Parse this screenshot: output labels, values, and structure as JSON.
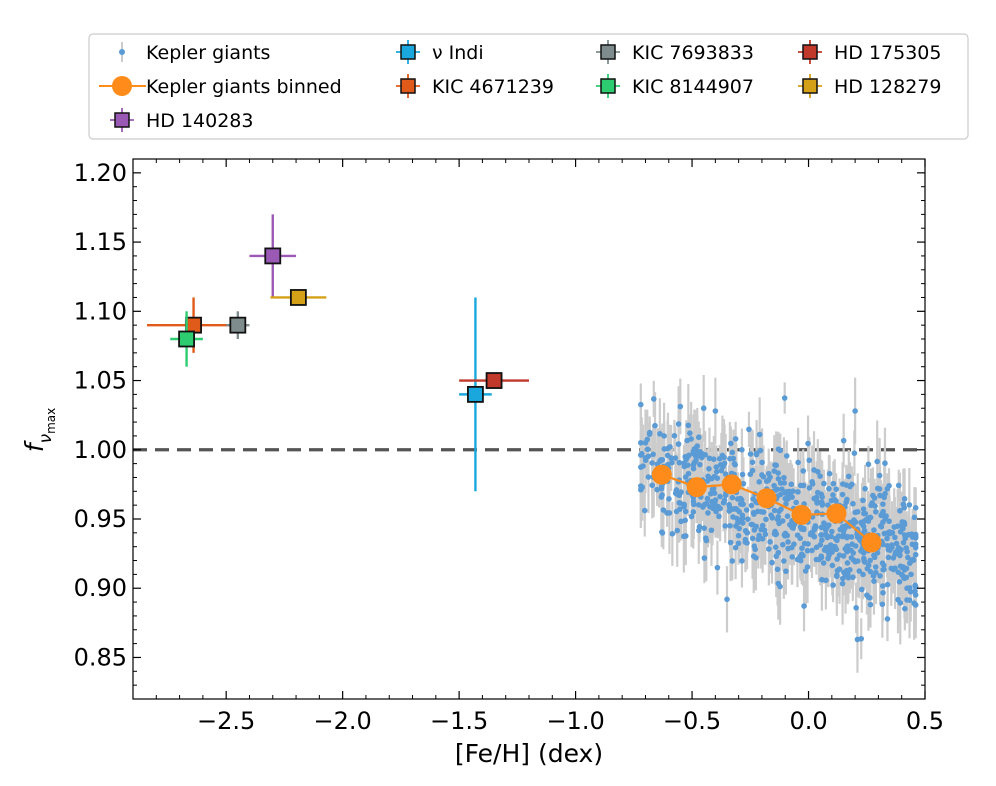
{
  "chart_data": {
    "type": "scatter",
    "xlabel": "[Fe/H] (dex)",
    "ylabel_main": "f",
    "ylabel_sub1": "ν",
    "ylabel_sub2": "max",
    "xlim": [
      -2.9,
      0.5
    ],
    "ylim": [
      0.82,
      1.21
    ],
    "x_ticks": [
      -2.5,
      -2.0,
      -1.5,
      -1.0,
      -0.5,
      0.0,
      0.5
    ],
    "x_tick_labels": [
      "−2.5",
      "−2.0",
      "−1.5",
      "−1.0",
      "−0.5",
      "0.0",
      "0.5"
    ],
    "y_ticks": [
      0.85,
      0.9,
      0.95,
      1.0,
      1.05,
      1.1,
      1.15,
      1.2
    ],
    "y_tick_labels": [
      "0.85",
      "0.90",
      "0.95",
      "1.00",
      "1.05",
      "1.10",
      "1.15",
      "1.20"
    ],
    "reference_line": {
      "y": 1.0,
      "style": "dashed",
      "color": "#555555"
    },
    "legend": {
      "placement": "above-plot",
      "entries": [
        {
          "label": "Kepler giants",
          "kind": "dot",
          "color": "#5b9bd5"
        },
        {
          "label": "Kepler giants binned",
          "kind": "line-circle",
          "color": "#ff8c1a"
        },
        {
          "label": "HD 140283",
          "kind": "square",
          "color": "#9b59b6"
        },
        {
          "label": "ν Indi",
          "kind": "square",
          "color": "#1aa7dd"
        },
        {
          "label": "KIC 4671239",
          "kind": "square",
          "color": "#e05a1a"
        },
        {
          "label": "KIC 7693833",
          "kind": "square",
          "color": "#7f8c8d"
        },
        {
          "label": "KIC 8144907",
          "kind": "square",
          "color": "#2ecc71"
        },
        {
          "label": "HD 175305",
          "kind": "square",
          "color": "#c0392b"
        },
        {
          "label": "HD 128279",
          "kind": "square",
          "color": "#d4a017"
        }
      ]
    },
    "series": [
      {
        "name": "Kepler giants",
        "color": "#5b9bd5",
        "errorbar_color": "#cccccc",
        "x_range": [
          -0.72,
          0.46
        ],
        "y_trend": {
          "at_x_min": 0.985,
          "at_x_max": 0.925
        },
        "y_scatter": 0.022,
        "n_points": 760,
        "typical_yerr": 0.02,
        "outliers": [
          {
            "x": -0.45,
            "y": 1.03
          },
          {
            "x": -0.4,
            "y": 1.028
          },
          {
            "x": 0.2,
            "y": 1.028
          },
          {
            "x": -0.62,
            "y": 1.01
          },
          {
            "x": -0.7,
            "y": 1.005
          },
          {
            "x": 0.21,
            "y": 0.863
          },
          {
            "x": 0.46,
            "y": 0.888
          },
          {
            "x": 0.44,
            "y": 0.91
          },
          {
            "x": -0.35,
            "y": 0.892
          }
        ]
      },
      {
        "name": "Kepler giants binned",
        "color": "#ff8c1a",
        "points": [
          {
            "x": -0.63,
            "y": 0.982
          },
          {
            "x": -0.48,
            "y": 0.973
          },
          {
            "x": -0.33,
            "y": 0.975
          },
          {
            "x": -0.18,
            "y": 0.965
          },
          {
            "x": -0.03,
            "y": 0.953
          },
          {
            "x": 0.12,
            "y": 0.954
          },
          {
            "x": 0.27,
            "y": 0.933
          }
        ]
      },
      {
        "name": "HD 140283",
        "color": "#9b59b6",
        "x": -2.3,
        "y": 1.14,
        "xerr": 0.1,
        "yerr": 0.03
      },
      {
        "name": "ν Indi",
        "color": "#1aa7dd",
        "x": -1.43,
        "y": 1.04,
        "xerr": 0.07,
        "yerr": 0.07
      },
      {
        "name": "KIC 4671239",
        "color": "#e05a1a",
        "x": -2.64,
        "y": 1.09,
        "xerr": 0.2,
        "yerr": 0.02
      },
      {
        "name": "KIC 7693833",
        "color": "#7f8c8d",
        "x": -2.45,
        "y": 1.09,
        "xerr": 0.05,
        "yerr": 0.01
      },
      {
        "name": "KIC 8144907",
        "color": "#2ecc71",
        "x": -2.67,
        "y": 1.08,
        "xerr": 0.07,
        "yerr": 0.02
      },
      {
        "name": "HD 175305",
        "color": "#c0392b",
        "x": -1.35,
        "y": 1.05,
        "xerr": 0.15,
        "yerr": 0.0
      },
      {
        "name": "HD 128279",
        "color": "#d4a017",
        "x": -2.19,
        "y": 1.11,
        "xerr": 0.12,
        "yerr": 0.0
      }
    ]
  }
}
